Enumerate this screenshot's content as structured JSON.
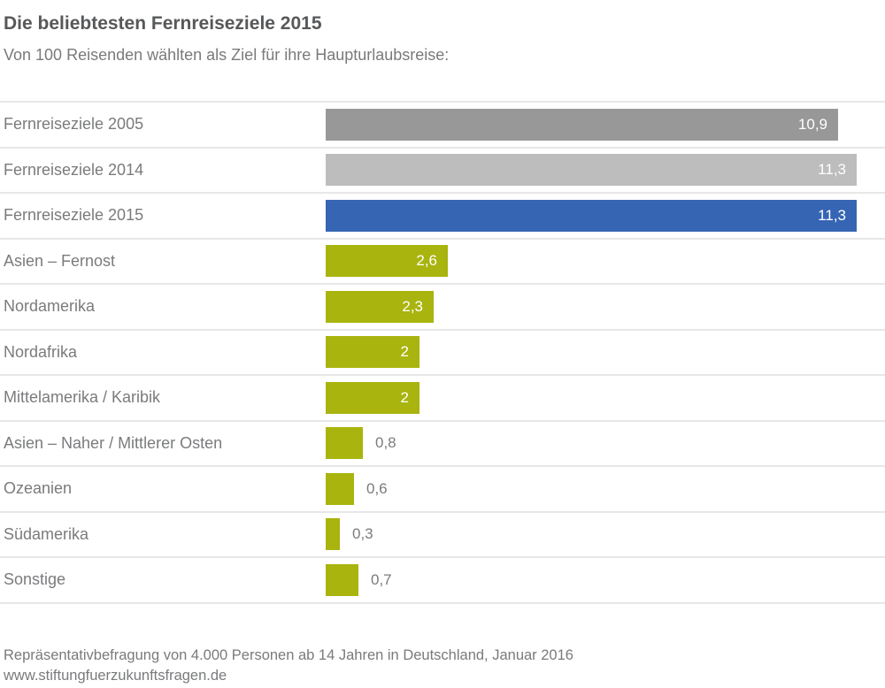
{
  "chart_data": {
    "type": "bar",
    "orientation": "horizontal",
    "title": "Die beliebtesten Fernreiseziele 2015",
    "subtitle": "Von 100 Reisenden wählten als Ziel für ihre Haupturlaubsreise:",
    "categories": [
      "Fernreiseziele 2005",
      "Fernreiseziele 2014",
      "Fernreiseziele 2015",
      "Asien – Fernost",
      "Nordamerika",
      "Nordafrika",
      "Mittelamerika / Karibik",
      "Asien – Naher / Mittlerer Osten",
      "Ozeanien",
      "Südamerika",
      "Sonstige"
    ],
    "values": [
      10.9,
      11.3,
      11.3,
      2.6,
      2.3,
      2.0,
      2.0,
      0.8,
      0.6,
      0.3,
      0.7
    ],
    "value_labels": [
      "10,9",
      "11,3",
      "11,3",
      "2,6",
      "2,3",
      "2",
      "2",
      "0,8",
      "0,6",
      "0,3",
      "0,7"
    ],
    "bar_colors": [
      "#989898",
      "#bdbdbd",
      "#3565b3",
      "#a9b40e",
      "#a9b40e",
      "#a9b40e",
      "#a9b40e",
      "#a9b40e",
      "#a9b40e",
      "#a9b40e",
      "#a9b40e"
    ],
    "label_inside": [
      true,
      true,
      true,
      true,
      true,
      true,
      true,
      false,
      false,
      false,
      false
    ],
    "xlim": [
      0,
      11.3
    ],
    "xlabel": "",
    "ylabel": "",
    "legend": "none",
    "grid": "horizontal row separators only"
  },
  "colors": {
    "bar_gray_dark": "#989898",
    "bar_gray_light": "#bdbdbd",
    "bar_blue": "#3565b3",
    "bar_green": "#a9b40e",
    "separator": "#e7e7e7",
    "text_gray": "#7a7b7d",
    "title_gray": "#57585a",
    "value_inside": "#ffffff"
  },
  "footer": {
    "source": "Repräsentativbefragung von 4.000 Personen ab 14 Jahren in Deutschland, Januar 2016",
    "website": "www.stiftungfuerzukunftsfragen.de"
  }
}
